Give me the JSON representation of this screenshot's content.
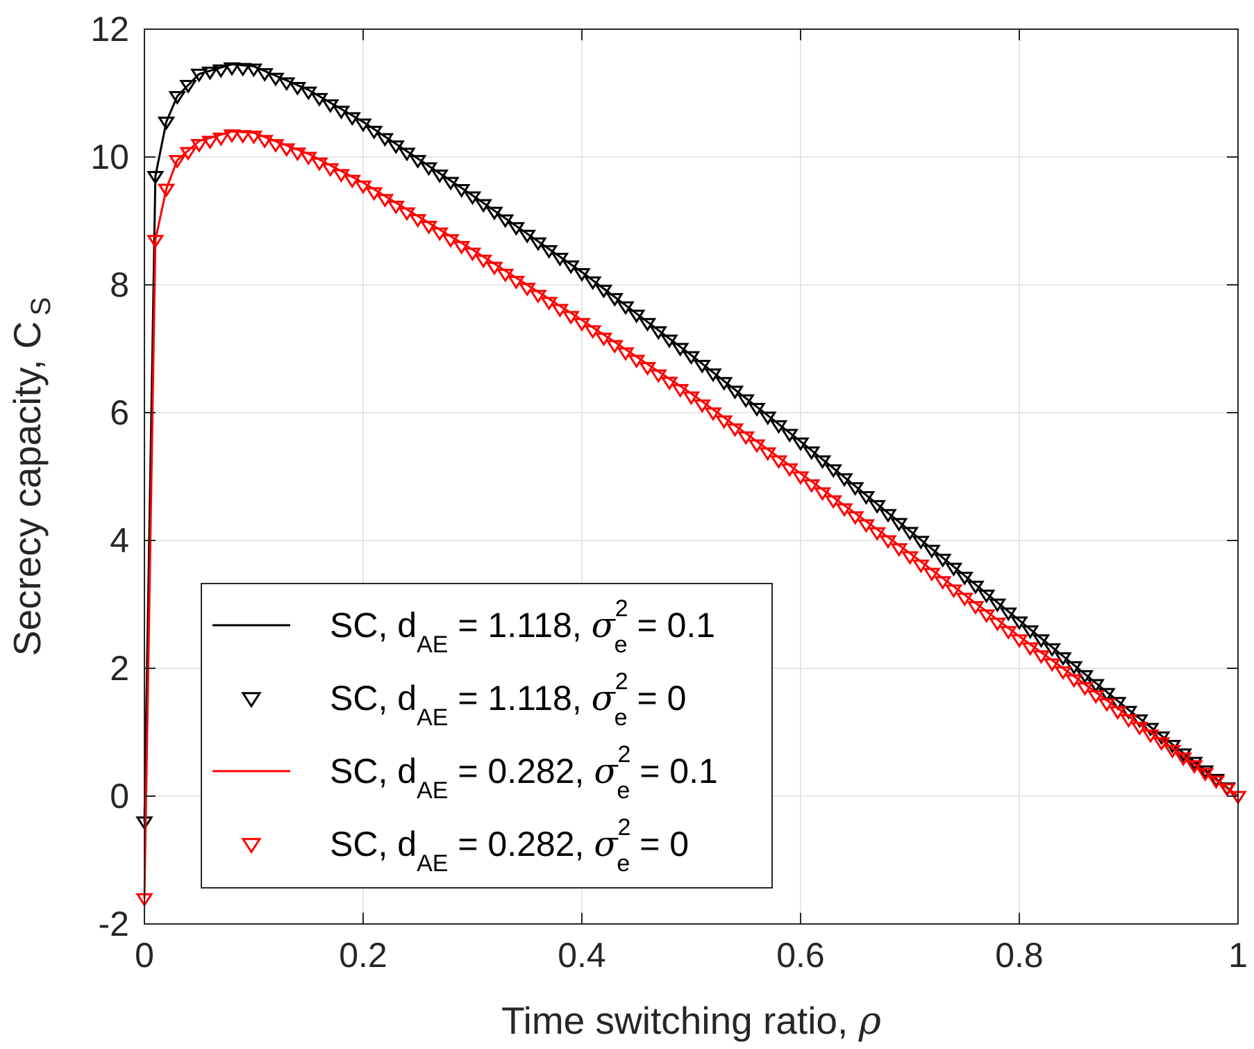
{
  "chart_data": {
    "type": "line",
    "title": "",
    "xlabel": {
      "text": "Time switching ratio,  ",
      "symbol": "ρ"
    },
    "ylabel": {
      "text": "Secrecy capacity, C",
      "subscript": "S"
    },
    "xlim": [
      0,
      1
    ],
    "ylim": [
      -2,
      12
    ],
    "xticks": [
      0,
      0.2,
      0.4,
      0.6,
      0.8,
      1
    ],
    "xtick_labels": [
      "0",
      "0.2",
      "0.4",
      "0.6",
      "0.8",
      "1"
    ],
    "yticks": [
      -2,
      0,
      2,
      4,
      6,
      8,
      10,
      12
    ],
    "ytick_labels": [
      "-2",
      "0",
      "2",
      "4",
      "6",
      "8",
      "10",
      "12"
    ],
    "grid": true,
    "legend_position": "bottom-left",
    "x": [
      0,
      0.01,
      0.02,
      0.03,
      0.05,
      0.08,
      0.1,
      0.15,
      0.2,
      0.3,
      0.4,
      0.5,
      0.6,
      0.7,
      0.8,
      0.9,
      1.0
    ],
    "series": [
      {
        "name": "SC, d_AE = 1.118, σ_e^2 = 0.1",
        "style": "line",
        "color": "#000000",
        "values": [
          -0.4,
          9.7,
          10.55,
          10.95,
          11.3,
          11.45,
          11.42,
          11.05,
          10.55,
          9.4,
          8.2,
          6.9,
          5.55,
          4.15,
          2.75,
          1.35,
          0.0
        ]
      },
      {
        "name": "SC, d_AE = 1.118, σ_e^2 = 0",
        "style": "markers",
        "marker": "triangle-down",
        "color": "#000000",
        "values": [
          -0.4,
          9.7,
          10.55,
          10.95,
          11.3,
          11.4,
          11.38,
          11.02,
          10.52,
          9.38,
          8.18,
          6.88,
          5.53,
          4.13,
          2.73,
          1.33,
          0.0
        ]
      },
      {
        "name": "SC, d_AE = 0.282, σ_e^2 = 0.1",
        "style": "line",
        "color": "#ff0000",
        "values": [
          -1.6,
          8.7,
          9.5,
          9.95,
          10.25,
          10.4,
          10.38,
          10.05,
          9.6,
          8.55,
          7.45,
          6.3,
          5.05,
          3.8,
          2.5,
          1.25,
          0.0
        ]
      },
      {
        "name": "SC, d_AE = 0.282, σ_e^2 = 0",
        "style": "markers",
        "marker": "triangle-down",
        "color": "#ff0000",
        "values": [
          -1.6,
          8.7,
          9.5,
          9.95,
          10.2,
          10.35,
          10.33,
          10.0,
          9.55,
          8.5,
          7.4,
          6.25,
          5.0,
          3.75,
          2.45,
          1.2,
          0.0
        ]
      }
    ],
    "legend": [
      {
        "prefix": "SC, d",
        "sub1": "AE",
        "mid": " = 1.118, ",
        "sigma": "σ",
        "sup": "2",
        "sub2": "e",
        "suffix": " = 0.1",
        "color": "#000000",
        "style": "line"
      },
      {
        "prefix": "SC, d",
        "sub1": "AE",
        "mid": " = 1.118, ",
        "sigma": "σ",
        "sup": "2",
        "sub2": "e",
        "suffix": " = 0",
        "color": "#000000",
        "style": "marker"
      },
      {
        "prefix": "SC, d",
        "sub1": "AE",
        "mid": " = 0.282, ",
        "sigma": "σ",
        "sup": "2",
        "sub2": "e",
        "suffix": " = 0.1",
        "color": "#ff0000",
        "style": "line"
      },
      {
        "prefix": "SC, d",
        "sub1": "AE",
        "mid": " = 0.282, ",
        "sigma": "σ",
        "sup": "2",
        "sub2": "e",
        "suffix": " = 0",
        "color": "#ff0000",
        "style": "marker"
      }
    ]
  }
}
